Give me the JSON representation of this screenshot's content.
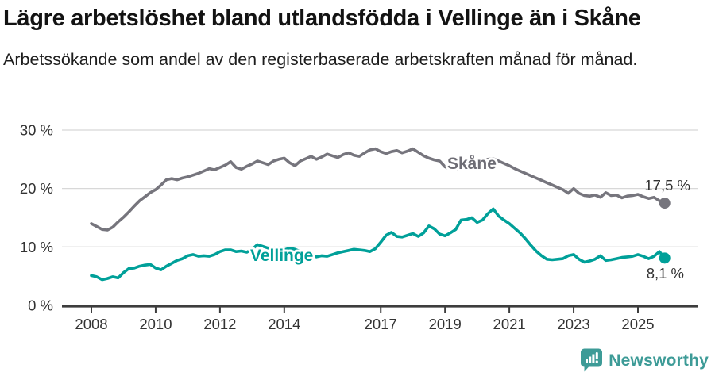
{
  "header": {
    "title": "Lägre arbetslöshet bland utlandsfödda i Vellinge än i Skåne",
    "subtitle": "Arbetssökande som andel av den registerbaserade arbetskraften månad för månad."
  },
  "footer": {
    "brand": "Newsworthy",
    "logo_icon": "speech-bubble-bar-chart-icon",
    "brand_color": "#3d9b97"
  },
  "colors": {
    "grid": "#d8d8d8",
    "axis": "#3d3d3d",
    "axis_text": "#333333",
    "value_label_text": "#333333"
  },
  "chart_data": {
    "type": "line",
    "title": "Lägre arbetslöshet bland utlandsfödda i Vellinge än i Skåne",
    "subtitle": "Arbetssökande som andel av den registerbaserade arbetskraften månad för månad.",
    "xlabel": "",
    "ylabel": "",
    "grid": true,
    "legend_position": "inline-labels",
    "xlim": [
      2007.1,
      2026.9
    ],
    "ylim": [
      0,
      31
    ],
    "x_start": 2008.0,
    "x_step_years": 0.16667,
    "x_ticks": [
      {
        "v": 2008,
        "label": "2008"
      },
      {
        "v": 2010,
        "label": "2010"
      },
      {
        "v": 2012,
        "label": "2012"
      },
      {
        "v": 2014,
        "label": "2014"
      },
      {
        "v": 2017,
        "label": "2017"
      },
      {
        "v": 2019,
        "label": "2019"
      },
      {
        "v": 2021,
        "label": "2021"
      },
      {
        "v": 2023,
        "label": "2023"
      },
      {
        "v": 2025,
        "label": "2025"
      }
    ],
    "y_ticks": [
      {
        "v": 0,
        "label": "0 %"
      },
      {
        "v": 10,
        "label": "10 %"
      },
      {
        "v": 20,
        "label": "20 %"
      },
      {
        "v": 30,
        "label": "30 %"
      }
    ],
    "series": [
      {
        "id": "skane",
        "name": "Skåne",
        "color": "#76757d",
        "end_label": "17,5 %",
        "end_value": 17.5,
        "values": [
          14.0,
          13.5,
          13.0,
          12.9,
          13.4,
          14.3,
          15.1,
          16.0,
          17.0,
          17.9,
          18.6,
          19.3,
          19.8,
          20.6,
          21.5,
          21.7,
          21.5,
          21.8,
          22.0,
          22.3,
          22.6,
          23.0,
          23.4,
          23.2,
          23.6,
          24.0,
          24.6,
          23.6,
          23.3,
          23.8,
          24.2,
          24.7,
          24.4,
          24.1,
          24.7,
          25.0,
          25.2,
          24.4,
          23.9,
          24.7,
          25.1,
          25.5,
          25.0,
          25.4,
          25.9,
          25.6,
          25.3,
          25.8,
          26.1,
          25.7,
          25.5,
          26.1,
          26.6,
          26.8,
          26.3,
          26.0,
          26.3,
          26.5,
          26.1,
          26.4,
          26.8,
          26.2,
          25.6,
          25.2,
          24.9,
          24.7,
          23.7,
          23.3,
          23.2,
          23.5,
          23.8,
          24.0,
          24.3,
          24.6,
          25.0,
          25.1,
          24.7,
          24.3,
          23.9,
          23.4,
          23.0,
          22.6,
          22.2,
          21.8,
          21.4,
          21.0,
          20.6,
          20.2,
          19.8,
          19.2,
          20.0,
          19.2,
          18.8,
          18.7,
          18.9,
          18.5,
          19.3,
          18.8,
          18.9,
          18.4,
          18.7,
          18.8,
          19.0,
          18.6,
          18.3,
          18.5,
          17.9,
          17.5
        ]
      },
      {
        "id": "vellinge",
        "name": "Vellinge",
        "color": "#00a099",
        "end_label": "8,1 %",
        "end_value": 8.1,
        "values": [
          5.1,
          4.9,
          4.4,
          4.6,
          4.9,
          4.7,
          5.6,
          6.3,
          6.4,
          6.7,
          6.9,
          7.0,
          6.4,
          6.1,
          6.7,
          7.2,
          7.7,
          8.0,
          8.5,
          8.7,
          8.4,
          8.5,
          8.4,
          8.7,
          9.2,
          9.5,
          9.5,
          9.2,
          9.3,
          9.1,
          9.6,
          10.4,
          10.1,
          9.8,
          9.6,
          9.4,
          9.5,
          9.8,
          9.6,
          9.2,
          8.9,
          8.5,
          8.3,
          8.5,
          8.4,
          8.7,
          9.0,
          9.2,
          9.4,
          9.6,
          9.5,
          9.4,
          9.2,
          9.7,
          10.8,
          12.0,
          12.5,
          11.8,
          11.7,
          12.0,
          12.3,
          11.8,
          12.4,
          13.6,
          13.1,
          12.2,
          11.9,
          12.4,
          13.0,
          14.6,
          14.7,
          15.0,
          14.2,
          14.6,
          15.7,
          16.5,
          15.3,
          14.6,
          14.0,
          13.2,
          12.4,
          11.4,
          10.3,
          9.3,
          8.5,
          7.9,
          7.8,
          7.9,
          8.0,
          8.5,
          8.7,
          7.9,
          7.4,
          7.6,
          7.9,
          8.5,
          7.7,
          7.8,
          8.0,
          8.2,
          8.3,
          8.4,
          8.7,
          8.4,
          8.0,
          8.4,
          9.2,
          8.1
        ]
      }
    ]
  }
}
